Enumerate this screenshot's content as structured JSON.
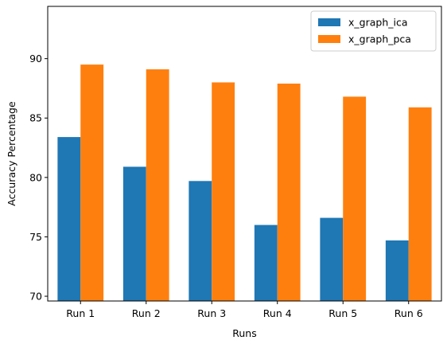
{
  "chart_data": {
    "type": "bar",
    "title": "",
    "xlabel": "Runs",
    "ylabel": "Accuracy Percentage",
    "categories": [
      "Run 1",
      "Run 2",
      "Run 3",
      "Run 4",
      "Run 5",
      "Run 6"
    ],
    "series": [
      {
        "name": "x_graph_ica",
        "color": "#1f77b4",
        "values": [
          83.4,
          80.9,
          79.7,
          76.0,
          76.6,
          74.7
        ]
      },
      {
        "name": "x_graph_pca",
        "color": "#ff7f0e",
        "values": [
          89.5,
          89.1,
          88.0,
          87.9,
          86.8,
          85.9
        ]
      }
    ],
    "ylim": [
      69.6,
      94.4
    ],
    "yticks": [
      70,
      75,
      80,
      85,
      90
    ],
    "grid": false,
    "legend_position": "top-right"
  }
}
